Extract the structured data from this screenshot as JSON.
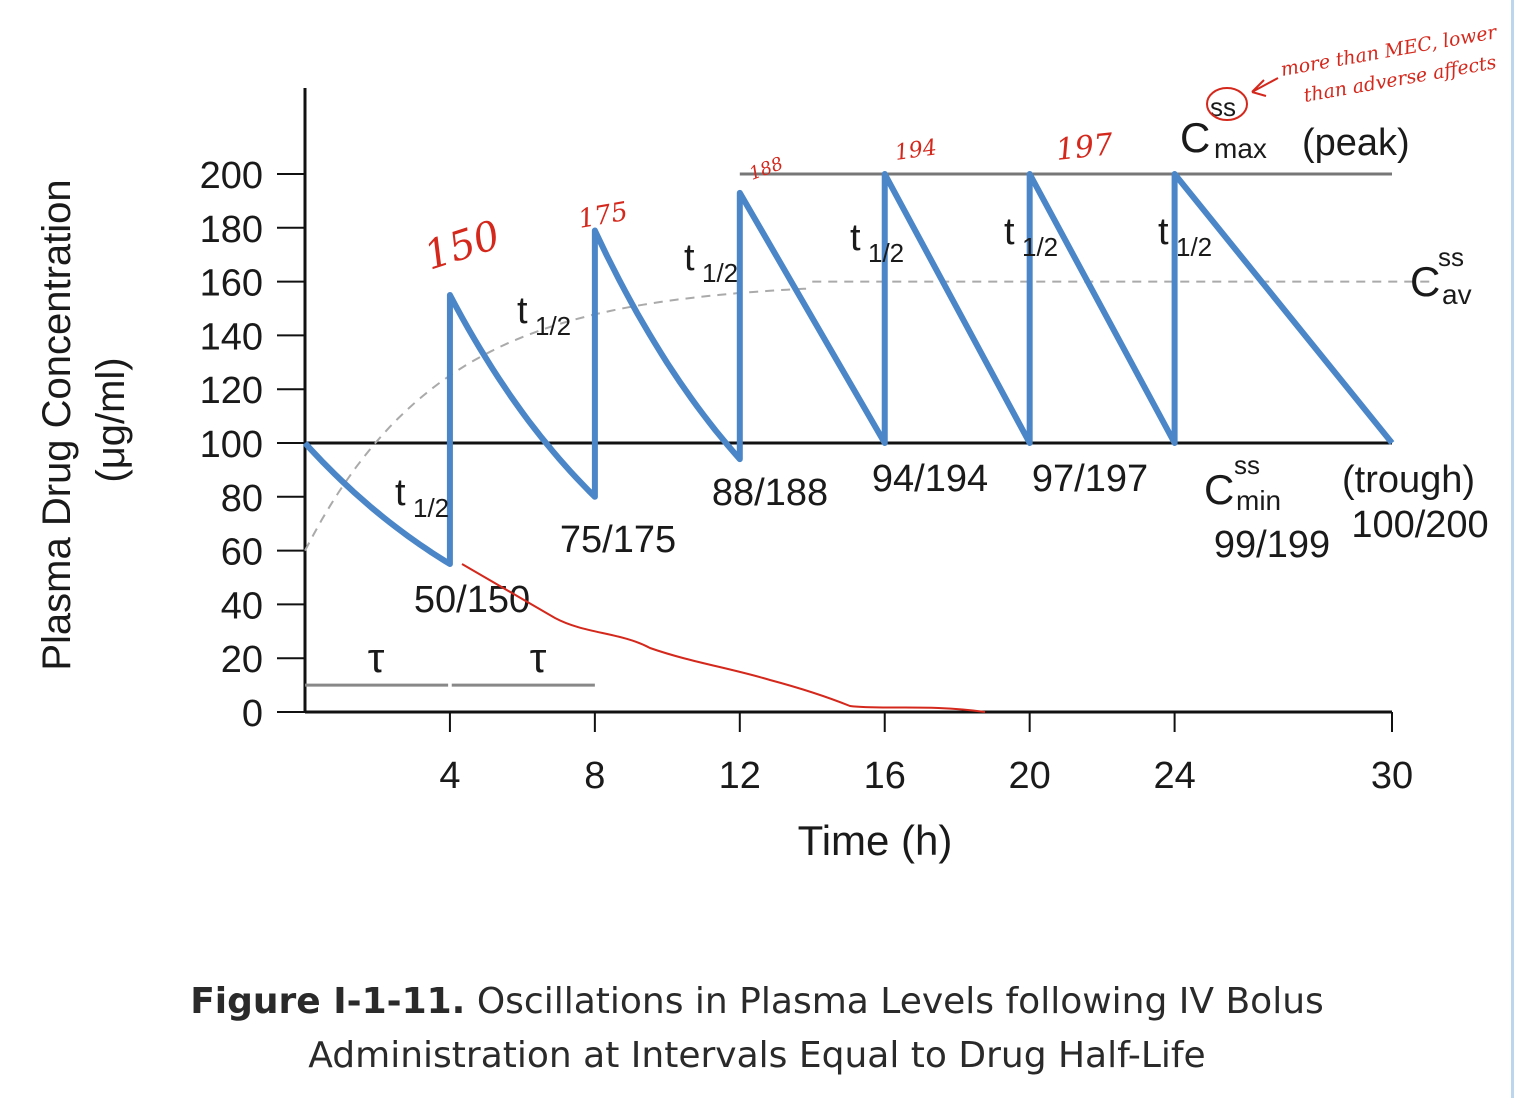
{
  "chart_data": {
    "type": "line",
    "xlabel": "Time (h)",
    "ylabel_line1": "Plasma Drug Concentration",
    "ylabel_line2": "(μg/ml)",
    "xlim": [
      0,
      30
    ],
    "ylim": [
      0,
      200
    ],
    "x_ticks": [
      4,
      8,
      12,
      16,
      20,
      24,
      30
    ],
    "y_ticks": [
      0,
      20,
      40,
      60,
      80,
      100,
      120,
      140,
      160,
      180,
      200
    ],
    "series": [
      {
        "color": "#4a86c8",
        "points": [
          [
            0,
            100
          ],
          [
            4,
            55
          ],
          [
            4,
            155
          ],
          [
            8,
            80
          ],
          [
            8,
            179
          ],
          [
            12,
            94
          ],
          [
            12,
            193
          ],
          [
            16,
            100
          ],
          [
            16,
            200
          ],
          [
            20,
            100
          ],
          [
            20,
            200
          ],
          [
            24,
            100
          ],
          [
            24,
            200
          ],
          [
            30,
            100
          ]
        ]
      }
    ],
    "reference_lines": {
      "peak_y": 200,
      "peak_x_start": 12,
      "peak_x_end": 30,
      "average_y": 160,
      "baseline_y": 100,
      "dosing_interval_y": 10
    },
    "average_curve_start": [
      0,
      60
    ],
    "annotations": {
      "half_life": "t",
      "half_life_sub": "1/2",
      "tau": "τ",
      "troughs": [
        "50/150",
        "75/175",
        "88/188",
        "94/194",
        "97/197",
        "99/199",
        "100/200"
      ],
      "cmax_main": "C",
      "cmax_sub": "max",
      "cmax_sup": "ss",
      "cmax_tag": "(peak)",
      "cav_main": "C",
      "cav_sub": "av",
      "cav_sup": "ss",
      "cmin_main": "C",
      "cmin_sub": "min",
      "cmin_sup": "ss",
      "trough_tag": "(trough)"
    },
    "handwritten": {
      "peaks": [
        "150",
        "175",
        "188",
        "194",
        "197"
      ],
      "note_line1": "more than MEC, lower",
      "note_line2": "than adverse affects",
      "color": "#d4281c"
    }
  },
  "caption": {
    "bold": "Figure I-1-11.",
    "line1": "Oscillations in Plasma Levels following IV Bolus",
    "line2": "Administration at Intervals Equal to Drug Half-Life"
  }
}
